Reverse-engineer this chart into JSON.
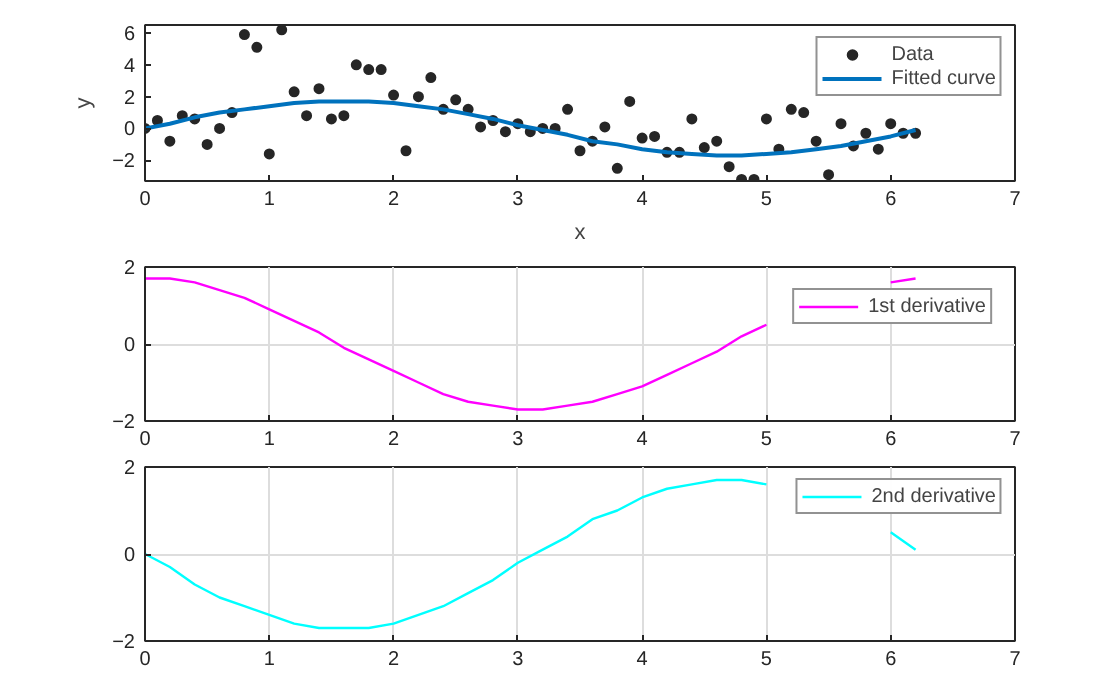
{
  "chart_data": [
    {
      "type": "line",
      "xlabel": "x",
      "ylabel": "y",
      "xlim": [
        0,
        7
      ],
      "xticks": [
        0,
        1,
        2,
        3,
        4,
        5,
        6,
        7
      ],
      "ylim": [
        -3.3,
        6.5
      ],
      "yticks": [
        -2,
        0,
        2,
        4,
        6
      ],
      "grid": false,
      "legend": "top right",
      "series": [
        {
          "name": "Data",
          "type": "scatter",
          "marker": "circle",
          "color": "#262626",
          "x": [
            0,
            0.1,
            0.2,
            0.3,
            0.4,
            0.5,
            0.6,
            0.7,
            0.8,
            0.9,
            1.0,
            1.1,
            1.2,
            1.3,
            1.4,
            1.5,
            1.6,
            1.7,
            1.8,
            1.9,
            2.0,
            2.1,
            2.2,
            2.3,
            2.4,
            2.5,
            2.6,
            2.7,
            2.8,
            2.9,
            3.0,
            3.1,
            3.2,
            3.3,
            3.4,
            3.5,
            3.6,
            3.7,
            3.8,
            3.9,
            4.0,
            4.1,
            4.2,
            4.3,
            4.4,
            4.5,
            4.6,
            4.7,
            4.8,
            4.9,
            5.0,
            5.1,
            5.2,
            5.3,
            5.4,
            5.5,
            5.6,
            5.7,
            5.8,
            5.9,
            6.0,
            6.1,
            6.2
          ],
          "values": [
            0,
            0.5,
            -0.8,
            0.8,
            0.6,
            -1.0,
            0,
            1.0,
            5.9,
            5.1,
            -1.6,
            6.2,
            2.3,
            0.8,
            2.5,
            0.6,
            0.8,
            4.0,
            3.7,
            3.7,
            2.1,
            -1.4,
            2.0,
            3.2,
            1.2,
            1.8,
            1.2,
            0.1,
            0.5,
            -0.2,
            0.3,
            -0.2,
            0,
            0,
            1.2,
            -1.4,
            -0.8,
            0.1,
            -2.5,
            1.7,
            -0.6,
            -0.5,
            -1.5,
            -1.5,
            0.6,
            -1.2,
            -0.8,
            -2.4,
            -3.2,
            -3.2,
            0.6,
            -1.3,
            1.2,
            1.0,
            -0.8,
            -2.9,
            0.3,
            -1.1,
            -0.3,
            -1.3,
            0.3,
            -0.3,
            -0.3
          ]
        },
        {
          "name": "Fitted curve",
          "type": "line",
          "color": "#0072bd",
          "x": [
            0,
            0.2,
            0.4,
            0.6,
            0.8,
            1.0,
            1.2,
            1.4,
            1.6,
            1.8,
            2.0,
            2.2,
            2.4,
            2.6,
            2.8,
            3.0,
            3.2,
            3.4,
            3.6,
            3.8,
            4.0,
            4.2,
            4.4,
            4.6,
            4.8,
            5.0,
            5.2,
            5.4,
            5.6,
            5.8,
            6.0,
            6.2
          ],
          "values": [
            0,
            0.3,
            0.7,
            1.0,
            1.2,
            1.4,
            1.6,
            1.7,
            1.7,
            1.7,
            1.6,
            1.4,
            1.2,
            0.9,
            0.6,
            0.2,
            -0.1,
            -0.4,
            -0.8,
            -1.0,
            -1.3,
            -1.5,
            -1.6,
            -1.7,
            -1.7,
            -1.6,
            -1.5,
            -1.3,
            -1.1,
            -0.8,
            -0.5,
            -0.1
          ]
        }
      ]
    },
    {
      "type": "line",
      "xlim": [
        0,
        7
      ],
      "xticks": [
        0,
        1,
        2,
        3,
        4,
        5,
        6,
        7
      ],
      "ylim": [
        -2,
        2
      ],
      "yticks": [
        -2,
        0,
        2
      ],
      "grid": true,
      "legend": "top right",
      "series": [
        {
          "name": "1st derivative",
          "color": "#ff00ff",
          "x": [
            0,
            0.2,
            0.4,
            0.6,
            0.8,
            1.0,
            1.2,
            1.4,
            1.6,
            1.8,
            2.0,
            2.2,
            2.4,
            2.6,
            2.8,
            3.0,
            3.2,
            3.4,
            3.6,
            3.8,
            4.0,
            4.2,
            4.4,
            4.6,
            4.8,
            5.0,
            5.2,
            5.4,
            5.6,
            5.8,
            6.0,
            6.2
          ],
          "values": [
            1.7,
            1.7,
            1.6,
            1.4,
            1.2,
            0.9,
            0.6,
            0.3,
            -0.1,
            -0.4,
            -0.7,
            -1.0,
            -1.3,
            -1.5,
            -1.6,
            -1.7,
            -1.7,
            -1.6,
            -1.5,
            -1.3,
            -1.1,
            -0.8,
            -0.5,
            -0.2,
            0.2,
            0.5,
            null,
            null,
            null,
            null,
            1.6,
            1.7
          ]
        }
      ]
    },
    {
      "type": "line",
      "xlim": [
        0,
        7
      ],
      "xticks": [
        0,
        1,
        2,
        3,
        4,
        5,
        6,
        7
      ],
      "ylim": [
        -2,
        2
      ],
      "yticks": [
        -2,
        0,
        2
      ],
      "grid": true,
      "legend": "top right",
      "series": [
        {
          "name": "2nd derivative",
          "color": "#00ffff",
          "x": [
            0,
            0.2,
            0.4,
            0.6,
            0.8,
            1.0,
            1.2,
            1.4,
            1.6,
            1.8,
            2.0,
            2.2,
            2.4,
            2.6,
            2.8,
            3.0,
            3.2,
            3.4,
            3.6,
            3.8,
            4.0,
            4.2,
            4.4,
            4.6,
            4.8,
            5.0,
            5.2,
            5.4,
            5.6,
            5.8,
            6.0,
            6.2
          ],
          "values": [
            0,
            -0.3,
            -0.7,
            -1.0,
            -1.2,
            -1.4,
            -1.6,
            -1.7,
            -1.7,
            -1.7,
            -1.6,
            -1.4,
            -1.2,
            -0.9,
            -0.6,
            -0.2,
            0.1,
            0.4,
            0.8,
            1.0,
            1.3,
            1.5,
            1.6,
            1.7,
            1.7,
            1.6,
            null,
            null,
            null,
            null,
            0.5,
            0.1
          ]
        }
      ]
    }
  ]
}
